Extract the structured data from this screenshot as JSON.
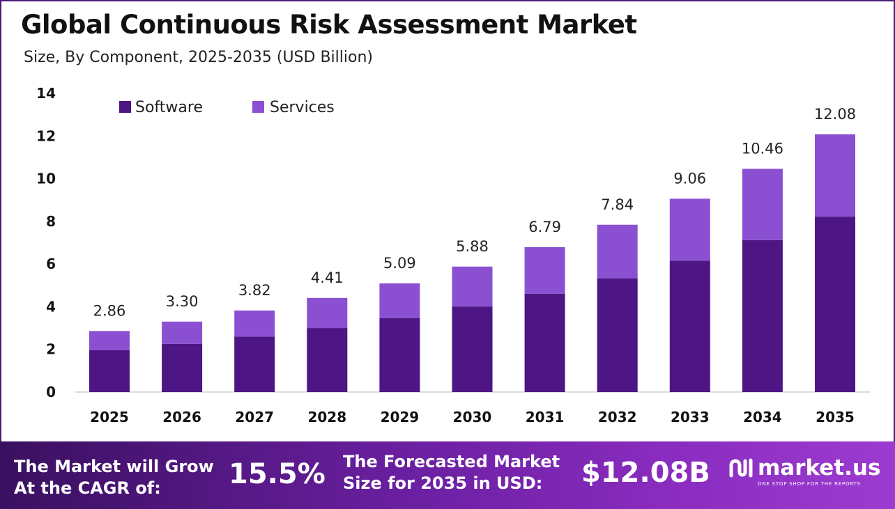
{
  "title": "Global Continuous Risk Assessment Market",
  "subtitle": "Size, By Component, 2025-2035 (USD Billion)",
  "colors": {
    "software": "#4e1585",
    "services": "#8b50d1",
    "footer_start": "#3a1060",
    "footer_end": "#9d3bd0"
  },
  "chart_data": {
    "type": "bar",
    "stacked": true,
    "categories": [
      "2025",
      "2026",
      "2027",
      "2028",
      "2029",
      "2030",
      "2031",
      "2032",
      "2033",
      "2034",
      "2035"
    ],
    "series": [
      {
        "name": "Software",
        "values": [
          1.96,
          2.26,
          2.6,
          3.0,
          3.47,
          4.01,
          4.61,
          5.33,
          6.16,
          7.12,
          8.22
        ]
      },
      {
        "name": "Services",
        "values": [
          0.9,
          1.04,
          1.22,
          1.41,
          1.62,
          1.87,
          2.18,
          2.51,
          2.9,
          3.34,
          3.86
        ]
      }
    ],
    "totals": [
      "2.86",
      "3.30",
      "3.82",
      "4.41",
      "5.09",
      "5.88",
      "6.79",
      "7.84",
      "9.06",
      "10.46",
      "12.08"
    ],
    "ylim": [
      0,
      14
    ],
    "yticks": [
      0,
      2,
      4,
      6,
      8,
      10,
      12,
      14
    ],
    "legend_position": "top-left",
    "grid": false
  },
  "footer": {
    "cagr_label_line1": "The Market will Grow",
    "cagr_label_line2": "At the CAGR of:",
    "cagr_value": "15.5%",
    "forecast_label_line1": "The Forecasted Market",
    "forecast_label_line2": "Size for 2035 in USD:",
    "forecast_value": "$12.08B",
    "brand_name": "market.us",
    "brand_tagline": "ONE STOP SHOP FOR THE REPORTS"
  }
}
